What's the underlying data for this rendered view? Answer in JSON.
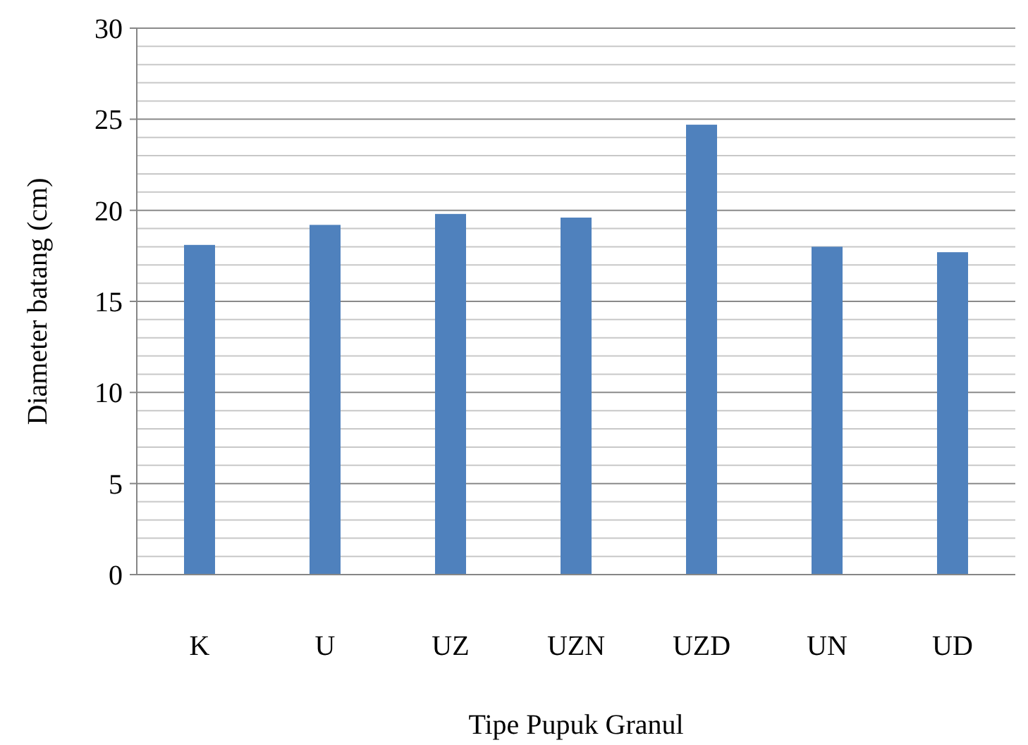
{
  "chart_data": {
    "type": "bar",
    "xlabel": "Tipe Pupuk Granul",
    "ylabel": "Diameter batang (cm)",
    "categories": [
      "K",
      "U",
      "UZ",
      "UZN",
      "UZD",
      "UN",
      "UD"
    ],
    "values": [
      18.1,
      19.2,
      19.8,
      19.6,
      24.7,
      18.0,
      17.7
    ],
    "color": "#4f81bd",
    "ylim": [
      0,
      30
    ],
    "yticks": [
      0,
      {
        "value": 1,
        "label": null
      },
      {
        "value": 2,
        "label": null
      },
      {
        "value": 3,
        "label": null
      },
      {
        "value": 4,
        "label": null
      },
      5,
      {
        "value": 6,
        "label": null
      },
      {
        "value": 7,
        "label": null
      },
      {
        "value": 8,
        "label": null
      },
      {
        "value": 9,
        "label": null
      },
      10,
      {
        "value": 11,
        "label": null
      },
      {
        "value": 12,
        "label": null
      },
      {
        "value": 13,
        "label": null
      },
      {
        "value": 14,
        "label": null
      },
      15,
      {
        "value": 16,
        "label": null
      },
      {
        "value": 17,
        "label": null
      },
      {
        "value": 18,
        "label": null
      },
      {
        "value": 19,
        "label": null
      },
      20,
      {
        "value": 21,
        "label": null
      },
      {
        "value": 22,
        "label": null
      },
      {
        "value": 23,
        "label": null
      },
      {
        "value": 24,
        "label": null
      },
      25,
      {
        "value": 26,
        "label": null
      },
      {
        "value": 27,
        "label": null
      },
      {
        "value": 28,
        "label": null
      },
      {
        "value": 29,
        "label": null
      },
      30
    ],
    "grid": "y"
  }
}
